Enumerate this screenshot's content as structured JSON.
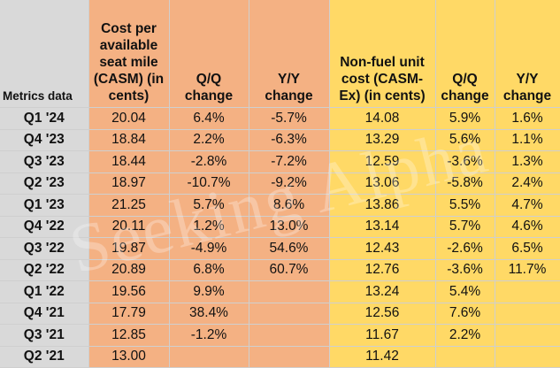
{
  "header": {
    "label": "Metrics data",
    "casm": "Cost per available seat mile (CASM) (in cents)",
    "qq1": "Q/Q change",
    "yy1": "Y/Y change",
    "casmex": "Non-fuel unit cost (CASM-Ex) (in cents)",
    "qq2": "Q/Q change",
    "yy2": "Y/Y change"
  },
  "rows": [
    {
      "period": "Q1 '24",
      "casm": "20.04",
      "casm_qq": "6.4%",
      "casm_yy": "-5.7%",
      "casmex": "14.08",
      "casmex_qq": "5.9%",
      "casmex_yy": "1.6%"
    },
    {
      "period": "Q4 '23",
      "casm": "18.84",
      "casm_qq": "2.2%",
      "casm_yy": "-6.3%",
      "casmex": "13.29",
      "casmex_qq": "5.6%",
      "casmex_yy": "1.1%"
    },
    {
      "period": "Q3 '23",
      "casm": "18.44",
      "casm_qq": "-2.8%",
      "casm_yy": "-7.2%",
      "casmex": "12.59",
      "casmex_qq": "-3.6%",
      "casmex_yy": "1.3%"
    },
    {
      "period": "Q2 '23",
      "casm": "18.97",
      "casm_qq": "-10.7%",
      "casm_yy": "-9.2%",
      "casmex": "13.06",
      "casmex_qq": "-5.8%",
      "casmex_yy": "2.4%"
    },
    {
      "period": "Q1 '23",
      "casm": "21.25",
      "casm_qq": "5.7%",
      "casm_yy": "8.6%",
      "casmex": "13.86",
      "casmex_qq": "5.5%",
      "casmex_yy": "4.7%"
    },
    {
      "period": "Q4 '22",
      "casm": "20.11",
      "casm_qq": "1.2%",
      "casm_yy": "13.0%",
      "casmex": "13.14",
      "casmex_qq": "5.7%",
      "casmex_yy": "4.6%"
    },
    {
      "period": "Q3 '22",
      "casm": "19.87",
      "casm_qq": "-4.9%",
      "casm_yy": "54.6%",
      "casmex": "12.43",
      "casmex_qq": "-2.6%",
      "casmex_yy": "6.5%"
    },
    {
      "period": "Q2 '22",
      "casm": "20.89",
      "casm_qq": "6.8%",
      "casm_yy": "60.7%",
      "casmex": "12.76",
      "casmex_qq": "-3.6%",
      "casmex_yy": "11.7%"
    },
    {
      "period": "Q1 '22",
      "casm": "19.56",
      "casm_qq": "9.9%",
      "casm_yy": "",
      "casmex": "13.24",
      "casmex_qq": "5.4%",
      "casmex_yy": ""
    },
    {
      "period": "Q4 '21",
      "casm": "17.79",
      "casm_qq": "38.4%",
      "casm_yy": "",
      "casmex": "12.56",
      "casmex_qq": "7.6%",
      "casmex_yy": ""
    },
    {
      "period": "Q3 '21",
      "casm": "12.85",
      "casm_qq": "-1.2%",
      "casm_yy": "",
      "casmex": "11.67",
      "casmex_qq": "2.2%",
      "casmex_yy": ""
    },
    {
      "period": "Q2 '21",
      "casm": "13.00",
      "casm_qq": "",
      "casm_yy": "",
      "casmex": "11.42",
      "casmex_qq": "",
      "casmex_yy": ""
    }
  ],
  "watermark": "Seeking Alpha",
  "colors": {
    "label_fill": "#d9d9d9",
    "casm_fill": "#f4b183",
    "casmex_fill": "#ffd966"
  }
}
